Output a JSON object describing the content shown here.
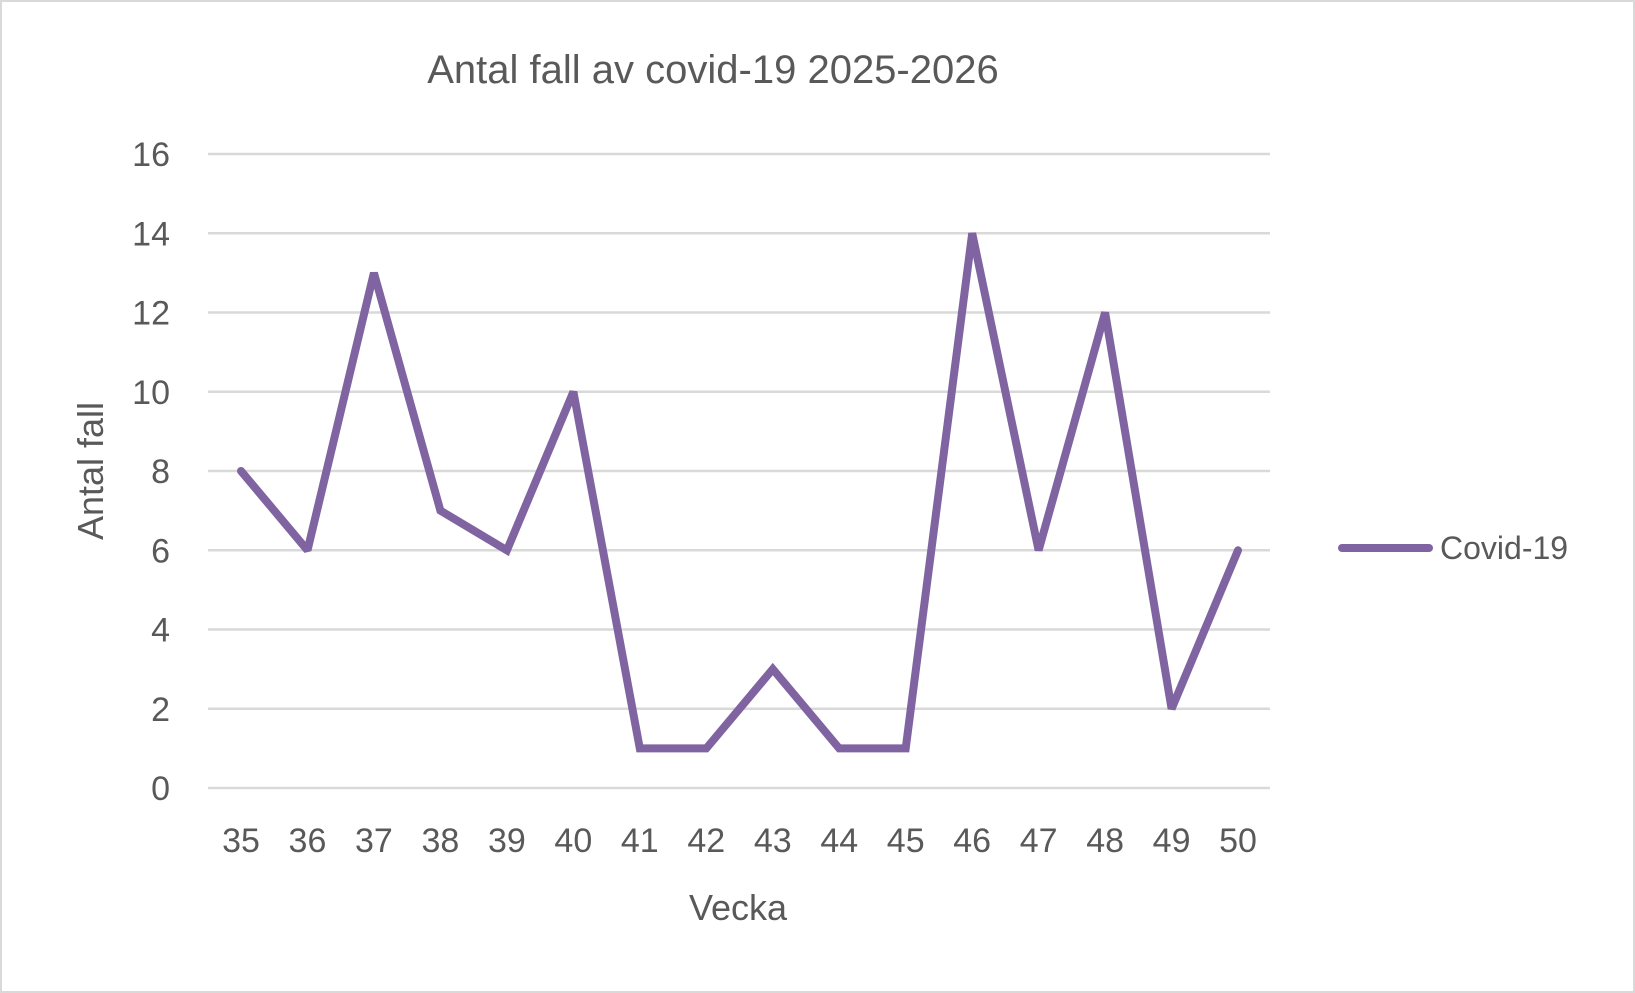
{
  "chart_data": {
    "type": "line",
    "title": "Antal fall av covid-19 2025-2026",
    "xlabel": "Vecka",
    "ylabel": "Antal fall",
    "categories": [
      "35",
      "36",
      "37",
      "38",
      "39",
      "40",
      "41",
      "42",
      "43",
      "44",
      "45",
      "46",
      "47",
      "48",
      "49",
      "50"
    ],
    "series": [
      {
        "name": "Covid-19",
        "color": "#8064a2",
        "values": [
          8,
          6,
          13,
          7,
          6,
          10,
          1,
          1,
          3,
          1,
          1,
          14,
          6,
          12,
          2,
          6
        ]
      }
    ],
    "ylim": [
      0,
      16
    ],
    "yticks": [
      "0",
      "2",
      "4",
      "6",
      "8",
      "10",
      "12",
      "14",
      "16"
    ],
    "grid": true,
    "legend": "right",
    "colors": {
      "grid": "#d9d9d9",
      "text": "#595959",
      "border": "#d9d9d9"
    }
  }
}
